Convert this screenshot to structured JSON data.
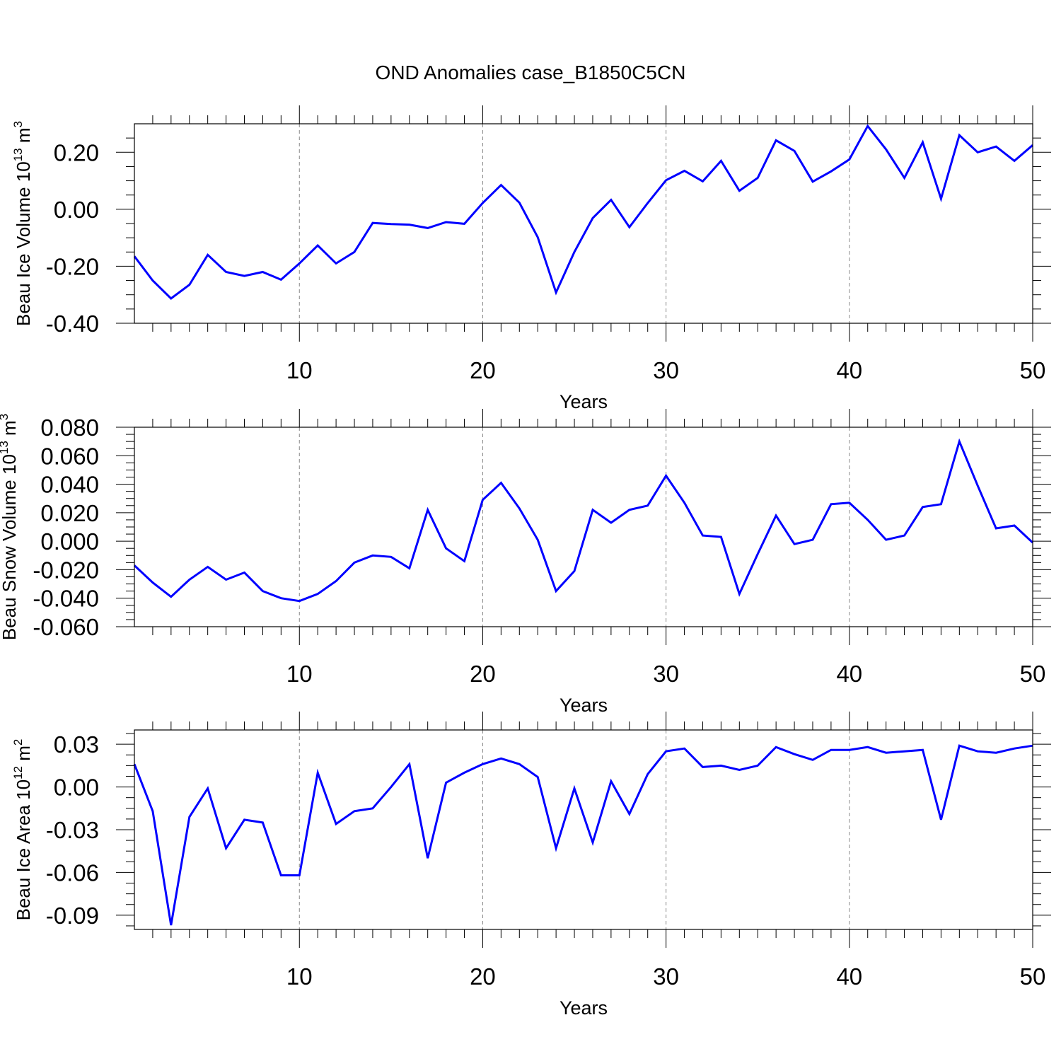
{
  "title": "OND Anomalies case_B1850C5CN",
  "chart_data": [
    {
      "type": "line",
      "xlabel": "Years",
      "ylabel": {
        "main": "Beau Ice Volume 10",
        "exp": "13",
        "mid": " m",
        "unit_exp": "3"
      },
      "xlim": [
        1,
        50
      ],
      "ylim": [
        -0.4,
        0.3
      ],
      "grid": "vertical dashed at x ticks",
      "xticks": [
        10,
        20,
        30,
        40,
        50
      ],
      "yticks": [
        -0.4,
        -0.2,
        0.0,
        0.2
      ],
      "ytick_labels": [
        "-0.40",
        "-0.20",
        "0.00",
        "0.20"
      ],
      "xtick_labels": [
        "10",
        "20",
        "30",
        "40",
        "50"
      ],
      "line_color": "#0000ff",
      "x": [
        1,
        2,
        3,
        4,
        5,
        6,
        7,
        8,
        9,
        10,
        11,
        12,
        13,
        14,
        15,
        16,
        17,
        18,
        19,
        20,
        21,
        22,
        23,
        24,
        25,
        26,
        27,
        28,
        29,
        30,
        31,
        32,
        33,
        34,
        35,
        36,
        37,
        38,
        39,
        40,
        41,
        42,
        43,
        44,
        45,
        46,
        47,
        48,
        49,
        50
      ],
      "y": [
        -0.165,
        -0.25,
        -0.313,
        -0.265,
        -0.16,
        -0.22,
        -0.234,
        -0.22,
        -0.247,
        -0.19,
        -0.127,
        -0.19,
        -0.15,
        -0.048,
        -0.052,
        -0.054,
        -0.066,
        -0.045,
        -0.051,
        0.022,
        0.085,
        0.023,
        -0.098,
        -0.292,
        -0.15,
        -0.031,
        0.033,
        -0.063,
        0.022,
        0.102,
        0.135,
        0.098,
        0.17,
        0.065,
        0.11,
        0.242,
        0.205,
        0.097,
        0.133,
        0.175,
        0.292,
        0.21,
        0.11,
        0.235,
        0.037,
        0.26,
        0.2,
        0.22,
        0.17,
        0.225
      ]
    },
    {
      "type": "line",
      "xlabel": "Years",
      "ylabel": {
        "main": "Beau Snow Volume 10",
        "exp": "13",
        "mid": " m",
        "unit_exp": "3"
      },
      "xlim": [
        1,
        50
      ],
      "ylim": [
        -0.06,
        0.08
      ],
      "grid": "vertical dashed at x ticks",
      "xticks": [
        10,
        20,
        30,
        40,
        50
      ],
      "yticks": [
        -0.06,
        -0.04,
        -0.02,
        0.0,
        0.02,
        0.04,
        0.06,
        0.08
      ],
      "ytick_labels": [
        "-0.060",
        "-0.040",
        "-0.020",
        "0.000",
        "0.020",
        "0.040",
        "0.060",
        "0.080"
      ],
      "xtick_labels": [
        "10",
        "20",
        "30",
        "40",
        "50"
      ],
      "line_color": "#0000ff",
      "x": [
        1,
        2,
        3,
        4,
        5,
        6,
        7,
        8,
        9,
        10,
        11,
        12,
        13,
        14,
        15,
        16,
        17,
        18,
        19,
        20,
        21,
        22,
        23,
        24,
        25,
        26,
        27,
        28,
        29,
        30,
        31,
        32,
        33,
        34,
        35,
        36,
        37,
        38,
        39,
        40,
        41,
        42,
        43,
        44,
        45,
        46,
        47,
        48,
        49,
        50
      ],
      "y": [
        -0.017,
        -0.029,
        -0.039,
        -0.027,
        -0.018,
        -0.027,
        -0.022,
        -0.035,
        -0.04,
        -0.042,
        -0.037,
        -0.028,
        -0.015,
        -0.01,
        -0.011,
        -0.019,
        0.022,
        -0.005,
        -0.014,
        0.029,
        0.041,
        0.023,
        0.001,
        -0.035,
        -0.021,
        0.022,
        0.013,
        0.022,
        0.025,
        0.046,
        0.027,
        0.004,
        0.003,
        -0.037,
        -0.009,
        0.018,
        -0.002,
        0.001,
        0.026,
        0.027,
        0.015,
        0.001,
        0.004,
        0.024,
        0.026,
        0.07,
        0.039,
        0.009,
        0.011,
        -0.001
      ]
    },
    {
      "type": "line",
      "xlabel": "Years",
      "ylabel": {
        "main": "Beau Ice Area 10",
        "exp": "12",
        "mid": " m",
        "unit_exp": "2"
      },
      "xlim": [
        1,
        50
      ],
      "ylim": [
        -0.1,
        0.04
      ],
      "grid": "vertical dashed at x ticks",
      "xticks": [
        10,
        20,
        30,
        40,
        50
      ],
      "yticks": [
        -0.09,
        -0.06,
        -0.03,
        0.0,
        0.03
      ],
      "ytick_labels": [
        "-0.09",
        "-0.06",
        "-0.03",
        "0.00",
        "0.03"
      ],
      "xtick_labels": [
        "10",
        "20",
        "30",
        "40",
        "50"
      ],
      "line_color": "#0000ff",
      "x": [
        1,
        2,
        3,
        4,
        5,
        6,
        7,
        8,
        9,
        10,
        11,
        12,
        13,
        14,
        15,
        16,
        17,
        18,
        19,
        20,
        21,
        22,
        23,
        24,
        25,
        26,
        27,
        28,
        29,
        30,
        31,
        32,
        33,
        34,
        35,
        36,
        37,
        38,
        39,
        40,
        41,
        42,
        43,
        44,
        45,
        46,
        47,
        48,
        49,
        50
      ],
      "y": [
        0.016,
        -0.017,
        -0.097,
        -0.021,
        -0.001,
        -0.043,
        -0.023,
        -0.025,
        -0.062,
        -0.062,
        0.01,
        -0.026,
        -0.017,
        -0.015,
        0,
        0.016,
        -0.05,
        0.003,
        0.01,
        0.016,
        0.02,
        0.016,
        0.007,
        -0.043,
        -0.001,
        -0.039,
        0.004,
        -0.019,
        0.009,
        0.025,
        0.027,
        0.014,
        0.015,
        0.012,
        0.015,
        0.028,
        0.023,
        0.019,
        0.026,
        0.026,
        0.028,
        0.024,
        0.025,
        0.026,
        -0.023,
        0.029,
        0.025,
        0.024,
        0.027,
        0.029
      ]
    }
  ]
}
